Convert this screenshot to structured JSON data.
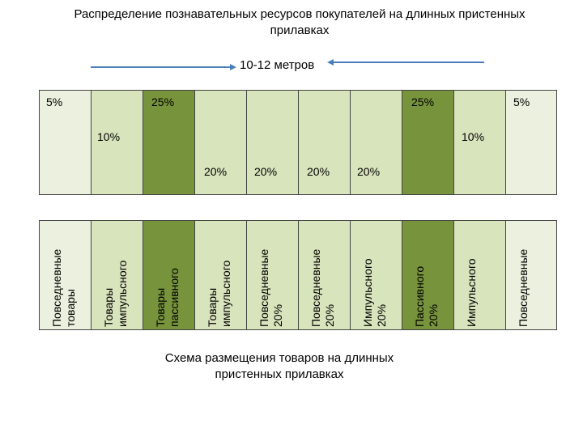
{
  "title": "Распределение познавательных ресурсов покупателей на длинных пристенных прилавках",
  "dimension_label": "10-12 метров",
  "colors": {
    "light": "#ebf1de",
    "mid": "#d8e4bc",
    "dark": "#77933c",
    "arrow": "#4a7ebb"
  },
  "upper": {
    "cols": [
      "light",
      "mid",
      "dark",
      "mid",
      "mid",
      "mid",
      "mid",
      "dark",
      "mid",
      "light"
    ],
    "labels": {
      "five_left": "5%",
      "twentyfive_left": "25%",
      "twentyfive_right": "25%",
      "five_right": "5%",
      "ten_left": "10%",
      "ten_right": "10%",
      "twenty": [
        "20%",
        "20%",
        "20%",
        "20%"
      ]
    }
  },
  "lower": {
    "cols": [
      "light",
      "mid",
      "dark",
      "mid",
      "mid",
      "mid",
      "mid",
      "dark",
      "mid",
      "light"
    ],
    "labels": [
      [
        "Повседневные",
        "товары"
      ],
      [
        "Товары",
        "импульсного"
      ],
      [
        "Товары",
        "пассивного"
      ],
      [
        "Товары",
        "импульсного"
      ],
      [
        "Повседневные",
        "20%"
      ],
      [
        "Повседневные",
        "20%"
      ],
      [
        "Импульсного",
        "20%"
      ],
      [
        "Пассивного",
        "20%"
      ],
      [
        "Импульсного"
      ],
      [
        "Повседневные"
      ]
    ]
  },
  "caption": "Схема размещения товаров на длинных пристенных прилавках"
}
